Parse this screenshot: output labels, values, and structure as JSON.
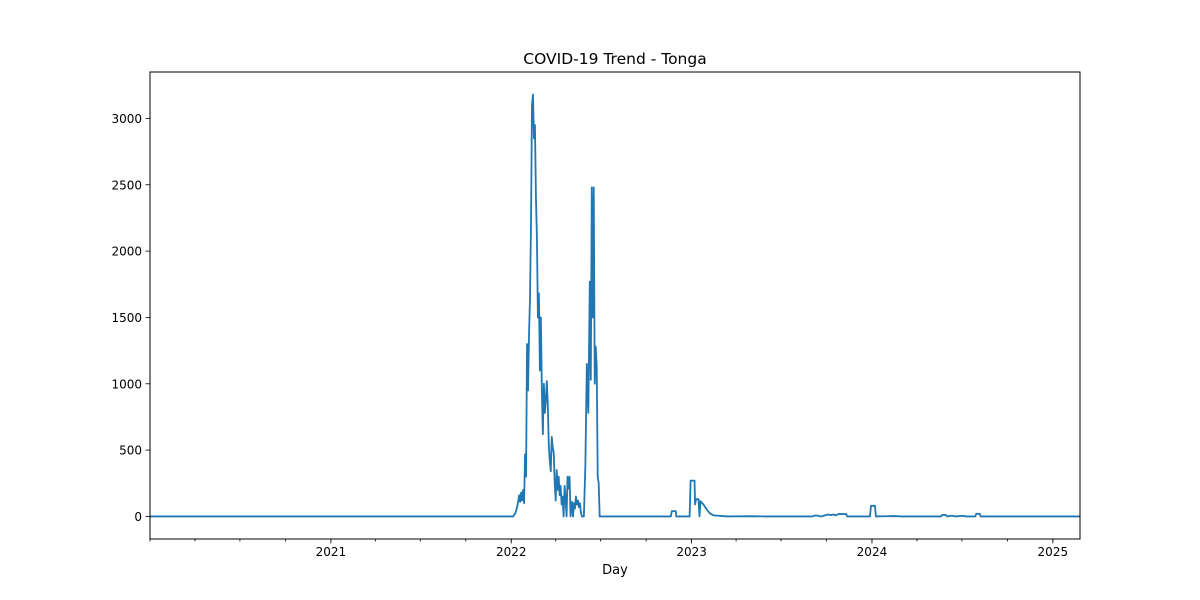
{
  "chart_data": {
    "type": "line",
    "title": "COVID-19 Trend - Tonga",
    "xlabel": "Day",
    "ylabel": "",
    "xlim": [
      "2020-01-01",
      "2025-02-25"
    ],
    "ylim": [
      -170,
      3350
    ],
    "x_ticks": [
      "2021",
      "2022",
      "2023",
      "2024",
      "2025"
    ],
    "y_ticks": [
      0,
      500,
      1000,
      1500,
      2000,
      2500,
      3000
    ],
    "grid": false,
    "legend": "none",
    "colors": {
      "line": "#1f77b4"
    },
    "series": [
      {
        "values": [
          [
            "2020-01-01",
            0
          ],
          [
            "2022-01-05",
            0
          ],
          [
            "2022-01-10",
            30
          ],
          [
            "2022-01-14",
            90
          ],
          [
            "2022-01-17",
            160
          ],
          [
            "2022-01-19",
            110
          ],
          [
            "2022-01-21",
            180
          ],
          [
            "2022-01-23",
            120
          ],
          [
            "2022-01-25",
            200
          ],
          [
            "2022-01-27",
            100
          ],
          [
            "2022-01-29",
            470
          ],
          [
            "2022-01-31",
            300
          ],
          [
            "2022-02-02",
            1300
          ],
          [
            "2022-02-04",
            950
          ],
          [
            "2022-02-06",
            1370
          ],
          [
            "2022-02-08",
            1650
          ],
          [
            "2022-02-10",
            2200
          ],
          [
            "2022-02-12",
            3100
          ],
          [
            "2022-02-14",
            3180
          ],
          [
            "2022-02-16",
            2850
          ],
          [
            "2022-02-18",
            2950
          ],
          [
            "2022-02-20",
            2400
          ],
          [
            "2022-02-22",
            2100
          ],
          [
            "2022-02-24",
            1500
          ],
          [
            "2022-02-26",
            1680
          ],
          [
            "2022-02-28",
            1100
          ],
          [
            "2022-03-02",
            1500
          ],
          [
            "2022-03-04",
            950
          ],
          [
            "2022-03-06",
            620
          ],
          [
            "2022-03-08",
            1000
          ],
          [
            "2022-03-10",
            780
          ],
          [
            "2022-03-12",
            870
          ],
          [
            "2022-03-14",
            1020
          ],
          [
            "2022-03-16",
            850
          ],
          [
            "2022-03-18",
            540
          ],
          [
            "2022-03-20",
            420
          ],
          [
            "2022-03-22",
            340
          ],
          [
            "2022-03-24",
            600
          ],
          [
            "2022-03-26",
            520
          ],
          [
            "2022-03-28",
            480
          ],
          [
            "2022-03-30",
            250
          ],
          [
            "2022-04-01",
            120
          ],
          [
            "2022-04-03",
            350
          ],
          [
            "2022-04-05",
            200
          ],
          [
            "2022-04-07",
            300
          ],
          [
            "2022-04-09",
            160
          ],
          [
            "2022-04-11",
            230
          ],
          [
            "2022-04-13",
            90
          ],
          [
            "2022-04-15",
            150
          ],
          [
            "2022-04-17",
            0
          ],
          [
            "2022-04-19",
            230
          ],
          [
            "2022-04-21",
            140
          ],
          [
            "2022-04-23",
            0
          ],
          [
            "2022-04-25",
            300
          ],
          [
            "2022-04-27",
            210
          ],
          [
            "2022-04-29",
            300
          ],
          [
            "2022-05-01",
            0
          ],
          [
            "2022-05-04",
            110
          ],
          [
            "2022-05-06",
            0
          ],
          [
            "2022-05-08",
            100
          ],
          [
            "2022-05-10",
            60
          ],
          [
            "2022-05-12",
            150
          ],
          [
            "2022-05-14",
            90
          ],
          [
            "2022-05-16",
            120
          ],
          [
            "2022-05-18",
            70
          ],
          [
            "2022-05-20",
            100
          ],
          [
            "2022-05-22",
            30
          ],
          [
            "2022-05-24",
            0
          ],
          [
            "2022-05-28",
            0
          ],
          [
            "2022-05-31",
            380
          ],
          [
            "2022-06-03",
            1150
          ],
          [
            "2022-06-06",
            780
          ],
          [
            "2022-06-09",
            1770
          ],
          [
            "2022-06-11",
            1030
          ],
          [
            "2022-06-13",
            2480
          ],
          [
            "2022-06-15",
            1500
          ],
          [
            "2022-06-17",
            2480
          ],
          [
            "2022-06-19",
            1000
          ],
          [
            "2022-06-21",
            1280
          ],
          [
            "2022-06-23",
            1130
          ],
          [
            "2022-06-25",
            300
          ],
          [
            "2022-06-27",
            250
          ],
          [
            "2022-06-29",
            0
          ],
          [
            "2022-11-20",
            0
          ],
          [
            "2022-11-22",
            40
          ],
          [
            "2022-11-30",
            40
          ],
          [
            "2022-12-01",
            0
          ],
          [
            "2022-12-28",
            0
          ],
          [
            "2022-12-30",
            270
          ],
          [
            "2023-01-07",
            270
          ],
          [
            "2023-01-08",
            90
          ],
          [
            "2023-01-10",
            130
          ],
          [
            "2023-01-15",
            130
          ],
          [
            "2023-01-17",
            0
          ],
          [
            "2023-01-19",
            115
          ],
          [
            "2023-01-25",
            90
          ],
          [
            "2023-02-01",
            50
          ],
          [
            "2023-02-08",
            20
          ],
          [
            "2023-02-15",
            8
          ],
          [
            "2023-03-01",
            4
          ],
          [
            "2023-03-15",
            0
          ],
          [
            "2023-05-01",
            2
          ],
          [
            "2023-06-01",
            0
          ],
          [
            "2023-09-01",
            0
          ],
          [
            "2023-09-10",
            8
          ],
          [
            "2023-09-20",
            0
          ],
          [
            "2023-10-04",
            15
          ],
          [
            "2023-10-10",
            10
          ],
          [
            "2023-10-15",
            15
          ],
          [
            "2023-10-20",
            8
          ],
          [
            "2023-10-25",
            18
          ],
          [
            "2023-11-10",
            18
          ],
          [
            "2023-11-12",
            0
          ],
          [
            "2023-12-28",
            0
          ],
          [
            "2023-12-30",
            80
          ],
          [
            "2024-01-07",
            80
          ],
          [
            "2024-01-09",
            0
          ],
          [
            "2024-02-15",
            3
          ],
          [
            "2024-03-01",
            0
          ],
          [
            "2024-05-20",
            0
          ],
          [
            "2024-05-22",
            12
          ],
          [
            "2024-05-29",
            12
          ],
          [
            "2024-06-01",
            0
          ],
          [
            "2024-06-10",
            5
          ],
          [
            "2024-06-20",
            0
          ],
          [
            "2024-07-01",
            5
          ],
          [
            "2024-07-10",
            0
          ],
          [
            "2024-07-28",
            0
          ],
          [
            "2024-07-30",
            20
          ],
          [
            "2024-08-06",
            20
          ],
          [
            "2024-08-08",
            0
          ],
          [
            "2025-02-25",
            0
          ]
        ]
      }
    ]
  }
}
